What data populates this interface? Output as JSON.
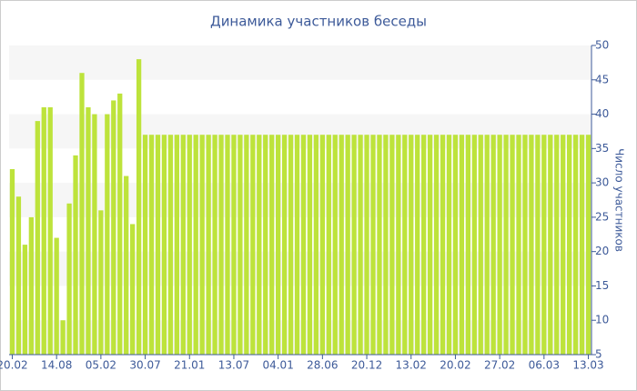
{
  "chart_data": {
    "type": "bar",
    "title": "Динамика участников беседы",
    "y_label": "Число участников",
    "categories": [
      "20.02",
      null,
      null,
      null,
      null,
      null,
      null,
      "14.08",
      null,
      null,
      null,
      null,
      null,
      null,
      "05.02",
      null,
      null,
      null,
      null,
      null,
      null,
      "30.07",
      null,
      null,
      null,
      null,
      null,
      null,
      "21.01",
      null,
      null,
      null,
      null,
      null,
      null,
      "13.07",
      null,
      null,
      null,
      null,
      null,
      null,
      "04.01",
      null,
      null,
      null,
      null,
      null,
      null,
      "28.06",
      null,
      null,
      null,
      null,
      null,
      null,
      "20.12",
      null,
      null,
      null,
      null,
      null,
      null,
      "13.02",
      null,
      null,
      null,
      null,
      null,
      null,
      "20.02",
      null,
      null,
      null,
      null,
      null,
      null,
      "27.02",
      null,
      null,
      null,
      null,
      null,
      null,
      "06.03",
      null,
      null,
      null,
      null,
      null,
      null,
      "13.03"
    ],
    "values": [
      32,
      28,
      21,
      25,
      39,
      41,
      41,
      22,
      10,
      27,
      34,
      46,
      41,
      40,
      26,
      40,
      42,
      43,
      31,
      24,
      48,
      37,
      37,
      37,
      37,
      37,
      37,
      37,
      37,
      37,
      37,
      37,
      37,
      37,
      37,
      37,
      37,
      37,
      37,
      37,
      37,
      37,
      37,
      37,
      37,
      37,
      37,
      37,
      37,
      37,
      37,
      37,
      37,
      37,
      37,
      37,
      37,
      37,
      37,
      37,
      37,
      37,
      37,
      37,
      37,
      37,
      37,
      37,
      37,
      37,
      37,
      37,
      37,
      37,
      37,
      37,
      37,
      37,
      37,
      37,
      37,
      37,
      37,
      37,
      37,
      37,
      37,
      37,
      37,
      37,
      37,
      37
    ],
    "color": "#bde33b",
    "ylim": [
      5,
      50
    ],
    "yticks": [
      5,
      10,
      15,
      20,
      25,
      30,
      35,
      40,
      45,
      50
    ],
    "y_axis_side": "right",
    "grid_bands": true
  }
}
